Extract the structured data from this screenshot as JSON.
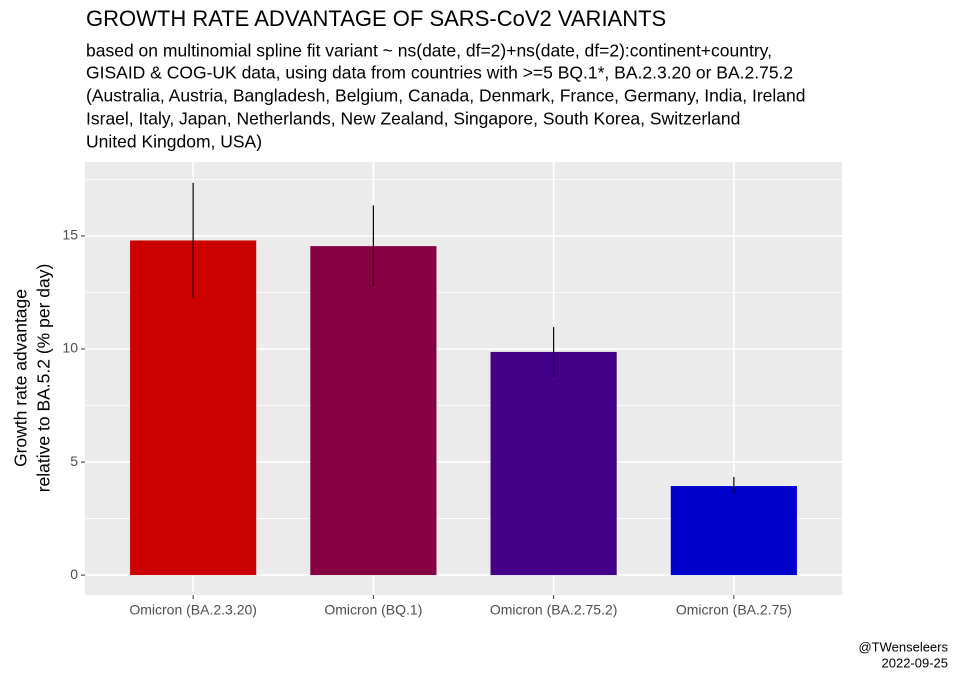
{
  "chart_data": {
    "type": "bar",
    "title": "GROWTH RATE ADVANTAGE OF SARS-CoV2 VARIANTS",
    "subtitle": [
      "based on multinomial spline fit variant ~ ns(date, df=2)+ns(date, df=2):continent+country,",
      "GISAID & COG-UK data, using data from countries with >=5 BQ.1*, BA.2.3.20 or BA.2.75.2",
      "(Australia, Austria, Bangladesh, Belgium, Canada, Denmark, France, Germany, India, Ireland",
      "Israel, Italy, Japan, Netherlands, New Zealand, Singapore, South Korea, Switzerland",
      "United Kingdom, USA)"
    ],
    "y_label": [
      "Growth rate advantage",
      "relative to BA.5.2 (% per day)"
    ],
    "caption": [
      "@TWenseleers",
      "2022-09-25"
    ],
    "categories": [
      "Omicron (BA.2.3.20)",
      "Omicron (BQ.1)",
      "Omicron (BA.2.75.2)",
      "Omicron (BA.2.75)"
    ],
    "values": [
      14.8,
      14.55,
      9.87,
      3.94
    ],
    "lower": [
      12.25,
      12.75,
      8.75,
      3.58
    ],
    "upper": [
      17.35,
      16.35,
      10.97,
      4.34
    ],
    "colors": [
      "#cc0000",
      "#880044",
      "#440088",
      "#0000cc"
    ],
    "ylim": [
      -0.88,
      18.27
    ],
    "yticks": [
      0,
      5,
      10,
      15
    ],
    "yminor": [
      2.5,
      7.5,
      12.5,
      17.5
    ],
    "grid": true
  }
}
